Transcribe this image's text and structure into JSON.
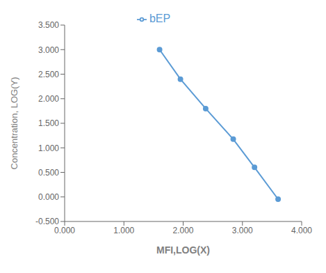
{
  "chart_data": {
    "type": "line",
    "x": [
      1.602,
      1.954,
      2.38,
      2.845,
      3.204,
      3.602
    ],
    "series": [
      {
        "name": "bEP",
        "color": "#5B9BD5",
        "marker": "circle",
        "values": [
          3.0,
          2.398,
          1.799,
          1.176,
          0.602,
          -0.046
        ]
      }
    ],
    "xlabel": "MFI,LOG(X)",
    "ylabel": "Concentration, LOG(Y)",
    "xlim": [
      0.0,
      4.0
    ],
    "ylim": [
      -0.5,
      3.5
    ],
    "xticks": [
      {
        "value": 0.0,
        "label": "0.000"
      },
      {
        "value": 1.0,
        "label": "1.000"
      },
      {
        "value": 2.0,
        "label": "2.000"
      },
      {
        "value": 3.0,
        "label": "3.000"
      },
      {
        "value": 4.0,
        "label": "4.000"
      }
    ],
    "yticks": [
      {
        "value": -0.5,
        "label": "-0.500"
      },
      {
        "value": 0.0,
        "label": "0.000"
      },
      {
        "value": 0.5,
        "label": "0.500"
      },
      {
        "value": 1.0,
        "label": "1.000"
      },
      {
        "value": 1.5,
        "label": "1.500"
      },
      {
        "value": 2.0,
        "label": "2.000"
      },
      {
        "value": 2.5,
        "label": "2.500"
      },
      {
        "value": 3.0,
        "label": "3.000"
      },
      {
        "value": 3.5,
        "label": "3.500"
      }
    ],
    "legend": "top",
    "grid": false
  }
}
